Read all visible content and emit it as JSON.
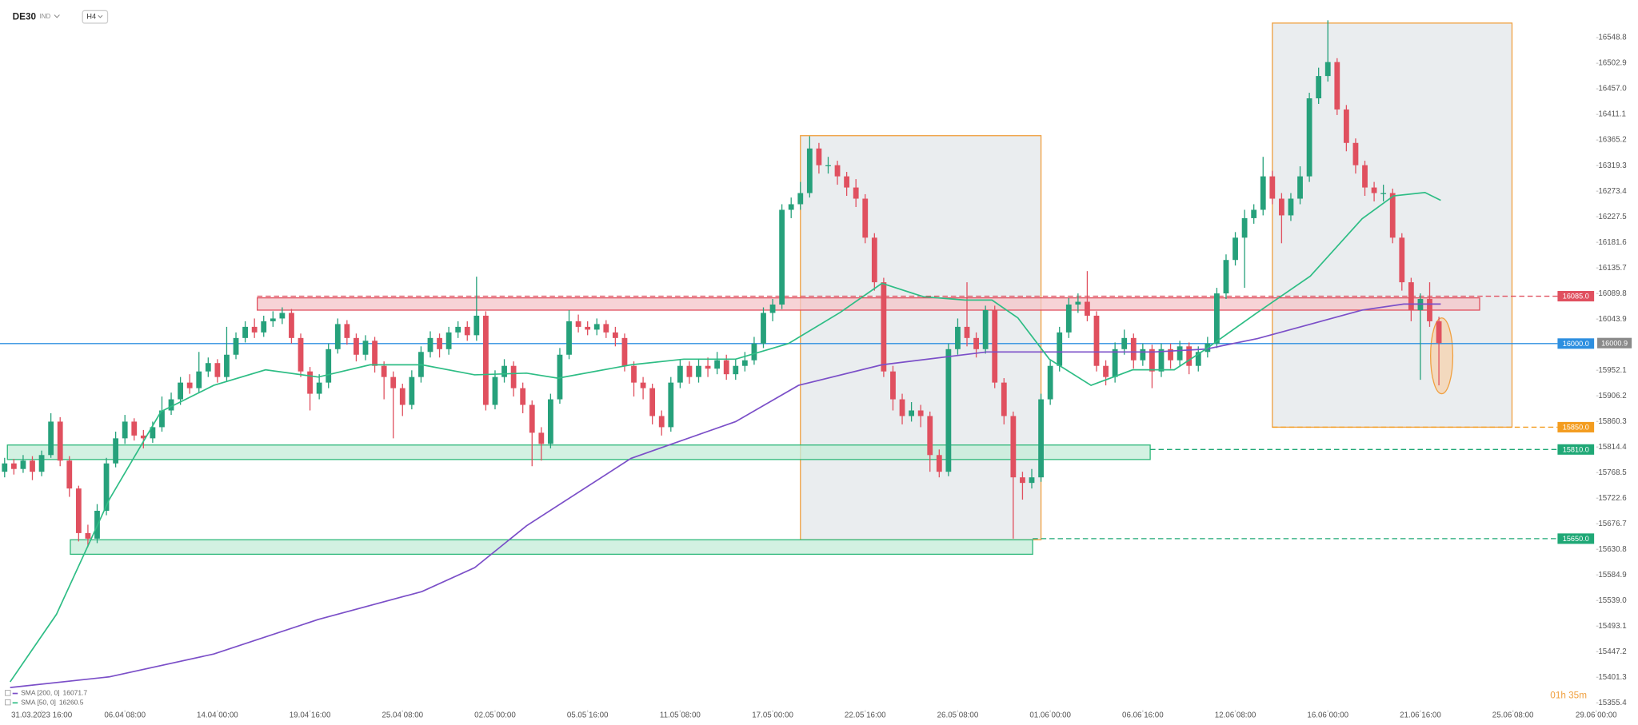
{
  "header": {
    "symbol": "DE30",
    "market": "IND",
    "interval": "H4"
  },
  "countdown": "01h 35m",
  "chart_data": {
    "type": "candlestick",
    "up_color": "#26a17b",
    "down_color": "#e0505f",
    "xlim": [
      -0.5,
      172
    ],
    "ylim": [
      15342.3,
      16616.0
    ],
    "xticks": [
      {
        "value": 4,
        "label": "31.03.2023 16:00"
      },
      {
        "value": 13,
        "label": "06.04 08:00"
      },
      {
        "value": 23,
        "label": "14.04 00:00"
      },
      {
        "value": 33,
        "label": "19.04 16:00"
      },
      {
        "value": 43,
        "label": "25.04 08:00"
      },
      {
        "value": 53,
        "label": "02.05 00:00"
      },
      {
        "value": 63,
        "label": "05.05 16:00"
      },
      {
        "value": 73,
        "label": "11.05 08:00"
      },
      {
        "value": 83,
        "label": "17.05 00:00"
      },
      {
        "value": 93,
        "label": "22.05 16:00"
      },
      {
        "value": 103,
        "label": "26.05 08:00"
      },
      {
        "value": 113,
        "label": "01.06 00:00"
      },
      {
        "value": 123,
        "label": "06.06 16:00"
      },
      {
        "value": 133,
        "label": "12.06 08:00"
      },
      {
        "value": 143,
        "label": "16.06 00:00"
      },
      {
        "value": 153,
        "label": "21.06 16:00"
      },
      {
        "value": 163,
        "label": "25.06 08:00"
      },
      {
        "value": 172,
        "label": "29.06 00:00"
      }
    ],
    "yticks": [
      16548.8,
      16502.9,
      {
        "value": 16457,
        "label": "16457.0"
      },
      16411.1,
      16365.2,
      16319.3,
      16273.4,
      16227.5,
      16181.6,
      16135.7,
      16089.8,
      16043.9,
      15952.1,
      15906.2,
      15860.3,
      15814.4,
      15768.5,
      15722.6,
      15676.7,
      15630.8,
      15584.9,
      {
        "value": 15539,
        "label": "15539.0"
      },
      15493.1,
      15447.2,
      15401.3,
      15355.4
    ],
    "ohlc": [
      [
        15770,
        15795,
        15760,
        15785
      ],
      [
        15785,
        15793,
        15765,
        15775
      ],
      [
        15775,
        15800,
        15768,
        15790
      ],
      [
        15790,
        15798,
        15755,
        15770
      ],
      [
        15770,
        15808,
        15762,
        15800
      ],
      [
        15800,
        15875,
        15795,
        15860
      ],
      [
        15860,
        15868,
        15780,
        15790
      ],
      [
        15790,
        15798,
        15725,
        15740
      ],
      [
        15740,
        15745,
        15645,
        15660
      ],
      [
        15660,
        15675,
        15635,
        15650
      ],
      [
        15650,
        15712,
        15642,
        15700
      ],
      [
        15700,
        15795,
        15692,
        15785
      ],
      [
        15785,
        15842,
        15778,
        15830
      ],
      [
        15830,
        15872,
        15820,
        15860
      ],
      [
        15860,
        15866,
        15826,
        15835
      ],
      [
        15835,
        15845,
        15812,
        15830
      ],
      [
        15830,
        15860,
        15822,
        15850
      ],
      [
        15850,
        15905,
        15842,
        15880
      ],
      [
        15880,
        15912,
        15872,
        15900
      ],
      [
        15900,
        15940,
        15890,
        15930
      ],
      [
        15930,
        15945,
        15910,
        15920
      ],
      [
        15920,
        15985,
        15912,
        15950
      ],
      [
        15950,
        15975,
        15940,
        15965
      ],
      [
        15965,
        15972,
        15930,
        15940
      ],
      [
        15940,
        16030,
        15932,
        15980
      ],
      [
        15980,
        16020,
        15972,
        16010
      ],
      [
        16010,
        16040,
        16002,
        16030
      ],
      [
        16030,
        16045,
        16010,
        16020
      ],
      [
        16020,
        16050,
        16012,
        16040
      ],
      [
        16040,
        16058,
        16030,
        16045
      ],
      [
        16045,
        16065,
        16035,
        16055
      ],
      [
        16055,
        16062,
        16000,
        16010
      ],
      [
        16010,
        16018,
        15940,
        15950
      ],
      [
        15950,
        15958,
        15880,
        15910
      ],
      [
        15910,
        15945,
        15900,
        15930
      ],
      [
        15930,
        16000,
        15920,
        15990
      ],
      [
        15990,
        16045,
        15982,
        16035
      ],
      [
        16035,
        16042,
        15998,
        16010
      ],
      [
        16010,
        16018,
        15968,
        15980
      ],
      [
        15980,
        16015,
        15970,
        16005
      ],
      [
        16005,
        16012,
        15948,
        15960
      ],
      [
        15960,
        15968,
        15900,
        15940
      ],
      [
        15940,
        15950,
        15830,
        15920
      ],
      [
        15920,
        15928,
        15870,
        15890
      ],
      [
        15890,
        15952,
        15882,
        15940
      ],
      [
        15940,
        15995,
        15930,
        15985
      ],
      [
        15985,
        16022,
        15975,
        16010
      ],
      [
        16010,
        16018,
        15975,
        15990
      ],
      [
        15990,
        16030,
        15980,
        16020
      ],
      [
        16020,
        16040,
        16010,
        16030
      ],
      [
        16030,
        16040,
        16005,
        16015
      ],
      [
        16015,
        16120,
        16005,
        16050
      ],
      [
        16050,
        16058,
        15880,
        15890
      ],
      [
        15890,
        15952,
        15882,
        15940
      ],
      [
        15940,
        15972,
        15930,
        15960
      ],
      [
        15960,
        15968,
        15905,
        15920
      ],
      [
        15920,
        15930,
        15875,
        15890
      ],
      [
        15890,
        15898,
        15780,
        15840
      ],
      [
        15840,
        15850,
        15790,
        15820
      ],
      [
        15820,
        15910,
        15812,
        15900
      ],
      [
        15900,
        15992,
        15892,
        15980
      ],
      [
        15980,
        16060,
        15972,
        16040
      ],
      [
        16040,
        16052,
        16020,
        16030
      ],
      [
        16030,
        16040,
        16015,
        16025
      ],
      [
        16025,
        16045,
        16015,
        16035
      ],
      [
        16035,
        16042,
        16010,
        16020
      ],
      [
        16020,
        16030,
        15995,
        16010
      ],
      [
        16010,
        16018,
        15950,
        15960
      ],
      [
        15960,
        15968,
        15905,
        15930
      ],
      [
        15930,
        15940,
        15900,
        15920
      ],
      [
        15920,
        15928,
        15855,
        15870
      ],
      [
        15870,
        15880,
        15835,
        15850
      ],
      [
        15850,
        15940,
        15842,
        15930
      ],
      [
        15930,
        15972,
        15920,
        15960
      ],
      [
        15960,
        15968,
        15928,
        15940
      ],
      [
        15940,
        15972,
        15930,
        15960
      ],
      [
        15960,
        15975,
        15940,
        15955
      ],
      [
        15955,
        15985,
        15945,
        15970
      ],
      [
        15970,
        15980,
        15935,
        15945
      ],
      [
        15945,
        15972,
        15935,
        15960
      ],
      [
        15960,
        15985,
        15950,
        15970
      ],
      [
        15970,
        16012,
        15962,
        16000
      ],
      [
        16000,
        16065,
        15992,
        16055
      ],
      [
        16055,
        16080,
        16040,
        16070
      ],
      [
        16070,
        16250,
        16062,
        16240
      ],
      [
        16240,
        16262,
        16225,
        16250
      ],
      [
        16250,
        16290,
        16240,
        16270
      ],
      [
        16270,
        16372,
        16262,
        16350
      ],
      [
        16350,
        16360,
        16305,
        16320
      ],
      [
        16320,
        16335,
        16305,
        16320
      ],
      [
        16320,
        16328,
        16285,
        16300
      ],
      [
        16300,
        16308,
        16265,
        16280
      ],
      [
        16280,
        16295,
        16245,
        16260
      ],
      [
        16260,
        16268,
        16180,
        16190
      ],
      [
        16190,
        16198,
        16095,
        16110
      ],
      [
        16110,
        16118,
        15940,
        15950
      ],
      [
        15950,
        15960,
        15880,
        15900
      ],
      [
        15900,
        15910,
        15855,
        15870
      ],
      [
        15870,
        15895,
        15860,
        15880
      ],
      [
        15880,
        15890,
        15850,
        15870
      ],
      [
        15870,
        15878,
        15770,
        15800
      ],
      [
        15800,
        15810,
        15760,
        15770
      ],
      [
        15770,
        16000,
        15762,
        15990
      ],
      [
        15990,
        16045,
        15980,
        16030
      ],
      [
        16030,
        16110,
        15995,
        16010
      ],
      [
        16010,
        16020,
        15975,
        15990
      ],
      [
        15990,
        16068,
        15982,
        16060
      ],
      [
        16060,
        16068,
        15920,
        15930
      ],
      [
        15930,
        15938,
        15855,
        15870
      ],
      [
        15870,
        15878,
        15650,
        15760
      ],
      [
        15760,
        15770,
        15720,
        15750
      ],
      [
        15750,
        15775,
        15740,
        15760
      ],
      [
        15760,
        15910,
        15752,
        15900
      ],
      [
        15900,
        15970,
        15890,
        15960
      ],
      [
        15960,
        16030,
        15950,
        16020
      ],
      [
        16020,
        16082,
        16010,
        16070
      ],
      [
        16070,
        16090,
        16055,
        16075
      ],
      [
        16075,
        16130,
        16040,
        16050
      ],
      [
        16050,
        16058,
        15950,
        15960
      ],
      [
        15960,
        15970,
        15925,
        15940
      ],
      [
        15940,
        16002,
        15930,
        15990
      ],
      [
        15990,
        16025,
        15980,
        16010
      ],
      [
        16010,
        16018,
        15955,
        15970
      ],
      [
        15970,
        16000,
        15960,
        15990
      ],
      [
        15990,
        15998,
        15920,
        15950
      ],
      [
        15950,
        16000,
        15940,
        15990
      ],
      [
        15990,
        16000,
        15955,
        15970
      ],
      [
        15970,
        16005,
        15960,
        15995
      ],
      [
        15995,
        16002,
        15945,
        15960
      ],
      [
        15960,
        15995,
        15950,
        15985
      ],
      [
        15985,
        16012,
        15975,
        16000
      ],
      [
        16000,
        16100,
        15992,
        16090
      ],
      [
        16090,
        16160,
        16080,
        16150
      ],
      [
        16150,
        16200,
        16140,
        16190
      ],
      [
        16190,
        16240,
        16100,
        16225
      ],
      [
        16225,
        16250,
        16215,
        16240
      ],
      [
        16240,
        16335,
        16230,
        16300
      ],
      [
        16300,
        16310,
        16250,
        16260
      ],
      [
        16260,
        16270,
        16180,
        16230
      ],
      [
        16230,
        16270,
        16220,
        16260
      ],
      [
        16260,
        16318,
        16250,
        16300
      ],
      [
        16300,
        16450,
        16290,
        16440
      ],
      [
        16440,
        16495,
        16430,
        16480
      ],
      [
        16480,
        16580,
        16470,
        16505
      ],
      [
        16505,
        16512,
        16410,
        16420
      ],
      [
        16420,
        16428,
        16345,
        16360
      ],
      [
        16360,
        16368,
        16305,
        16320
      ],
      [
        16320,
        16328,
        16265,
        16280
      ],
      [
        16280,
        16290,
        16255,
        16270
      ],
      [
        16270,
        16285,
        16255,
        16270
      ],
      [
        16270,
        16278,
        16180,
        16190
      ],
      [
        16190,
        16198,
        16095,
        16110
      ],
      [
        16110,
        16118,
        16040,
        16060
      ],
      [
        16060,
        16090,
        15935,
        16080
      ],
      [
        16080,
        16110,
        16030,
        16040
      ],
      [
        16040,
        16048,
        15925,
        16000.9
      ]
    ],
    "series": [
      {
        "name": "SMA [200, 0]",
        "legend_value": 16071.7,
        "color": "#7b4fc8",
        "x": [
          0.6,
          11.3,
          22.6,
          33.9,
          45.1,
          50.8,
          56.4,
          67.7,
          79,
          85.8,
          94.8,
          106.1,
          112.9,
          124.2,
          129.8,
          135.4,
          146.7,
          151.2,
          155.2
        ],
        "values": [
          15383,
          15402,
          15443,
          15505,
          15555,
          15598,
          15673,
          15794,
          15860,
          15925,
          15962,
          15985,
          15985,
          15985,
          15990,
          16009,
          16060,
          16071,
          16071
        ]
      },
      {
        "name": "SMA [50, 0]",
        "legend_value": 16260.5,
        "color": "#2ebd85",
        "x": [
          0.6,
          5.6,
          11.3,
          16.9,
          22.6,
          28.2,
          33.9,
          39.5,
          45.1,
          50.8,
          56.4,
          59.8,
          67.7,
          73.4,
          79,
          84.7,
          90.3,
          94.8,
          99.3,
          103.8,
          106.7,
          109.5,
          112.9,
          117.4,
          121.9,
          126.4,
          129.8,
          135.4,
          141.1,
          146.7,
          150.1,
          153.5,
          155.2
        ],
        "values": [
          15393,
          15514,
          15720,
          15878,
          15925,
          15953,
          15940,
          15962,
          15962,
          15944,
          15947,
          15938,
          15962,
          15972,
          15972,
          16000,
          16056,
          16108,
          16084,
          16078,
          16078,
          16046,
          15972,
          15925,
          15953,
          15953,
          15990,
          16056,
          16121,
          16224,
          16265,
          16271,
          16257
        ]
      }
    ],
    "zones": [
      {
        "shape": "rect",
        "x": [
          86.0,
          112.0
        ],
        "y": [
          15648,
          16373
        ],
        "fill": "#e3e7e9",
        "stroke": "#f0a040"
      },
      {
        "shape": "rect",
        "x": [
          137.0,
          162.9
        ],
        "y": [
          15850,
          16575
        ],
        "fill": "#e3e7e9",
        "stroke": "#f0a040"
      },
      {
        "shape": "rect",
        "x": [
          27.3,
          159.4
        ],
        "y": [
          16060,
          16082
        ],
        "fill": "#f4c4c8",
        "stroke": "#e0505f"
      },
      {
        "shape": "rect",
        "x": [
          0.3,
          123.8
        ],
        "y": [
          15792,
          15818
        ],
        "fill": "#c4ecd8",
        "stroke": "#2eb87a"
      },
      {
        "shape": "rect",
        "x": [
          7.1,
          111.1
        ],
        "y": [
          15622,
          15648
        ],
        "fill": "#c4ecd8",
        "stroke": "#2eb87a"
      },
      {
        "shape": "ellipse",
        "x": [
          154.1,
          156.5
        ],
        "y": [
          15910,
          16046
        ],
        "fill": "#f6d2ae",
        "stroke": "#f0a040"
      }
    ],
    "levels": [
      {
        "value": 16085,
        "label": "16085.0",
        "color": "#e0505f",
        "from": 27.3,
        "dash": true
      },
      {
        "value": 16000,
        "label": "16000.0",
        "color": "#2d8fe0",
        "from": -0.5,
        "dash": false
      },
      {
        "value": 15850,
        "label": "15850.0",
        "color": "#f39c1f",
        "from": 137.0,
        "dash": true
      },
      {
        "value": 15810,
        "label": "15810.0",
        "color": "#1fa876",
        "from": 123.8,
        "dash": true
      },
      {
        "value": 15650,
        "label": "15650.0",
        "color": "#1fa876",
        "from": 111.1,
        "dash": true
      }
    ],
    "last_price": 16000.9
  }
}
